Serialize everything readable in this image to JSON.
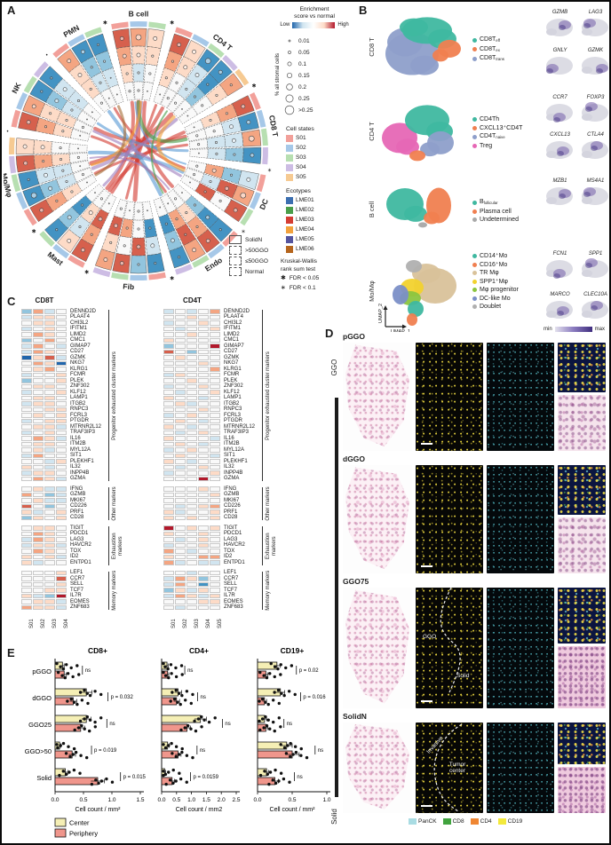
{
  "panelA": {
    "label": "A",
    "sector_order": [
      "B cell",
      "CD4 T",
      "CD8 T",
      "DC",
      "Endo",
      "Fib",
      "Mast",
      "Mo/Mφ",
      "NK",
      "PMN"
    ],
    "ring_names": [
      "SolidN",
      ">50GGO",
      "≤50GGO",
      "Normal"
    ],
    "state_colors": {
      "S01": "#f2a09a",
      "S02": "#a6c8e8",
      "S03": "#b7dfb1",
      "S04": "#cdbde4",
      "S05": "#f6ca92"
    },
    "sectors": [
      {
        "name": "B cell",
        "states": [
          "S01",
          "S02",
          "S03"
        ],
        "values": [
          "765",
          "655",
          "534",
          "444"
        ],
        "dots": [
          "232",
          "221",
          "111",
          "110"
        ]
      },
      {
        "name": "CD4 T",
        "states": [
          "S01",
          "S02",
          "S03",
          "S04",
          "S05"
        ],
        "values": [
          "75116",
          "65315",
          "54324",
          "44444"
        ],
        "dots": [
          "22321",
          "12211",
          "11111",
          "01100"
        ]
      },
      {
        "name": "CD8 T",
        "states": [
          "S01",
          "S02",
          "S03",
          "S04"
        ],
        "values": [
          "7161",
          "6332",
          "5433",
          "4444"
        ],
        "dots": [
          "2232",
          "1221",
          "1111",
          "0110"
        ]
      },
      {
        "name": "DC",
        "states": [
          "S01",
          "S02",
          "S03"
        ],
        "values": [
          "367",
          "274",
          "637",
          "444"
        ],
        "dots": [
          "232",
          "121",
          "211",
          "110"
        ]
      },
      {
        "name": "Endo",
        "states": [
          "S01",
          "S02",
          "S03",
          "S04"
        ],
        "values": [
          "1761",
          "1672",
          "2561",
          "4444"
        ],
        "dots": [
          "1221",
          "2112",
          "1111",
          "0100"
        ]
      },
      {
        "name": "Fib",
        "states": [
          "S01",
          "S02",
          "S03",
          "S04"
        ],
        "values": [
          "1276",
          "3745",
          "1467",
          "4444"
        ],
        "dots": [
          "1122",
          "2211",
          "1112",
          "0101"
        ]
      },
      {
        "name": "Mast",
        "states": [
          "S01",
          "S02",
          "S03"
        ],
        "values": [
          "751",
          "632",
          "751",
          "444"
        ],
        "dots": [
          "221",
          "112",
          "221",
          "010"
        ]
      },
      {
        "name": "Mo/Mφ",
        "states": [
          "S01",
          "S02",
          "S03",
          "S04",
          "S05"
        ],
        "values": [
          "71175",
          "62365",
          "53354",
          "44444"
        ],
        "dots": [
          "23122",
          "12212",
          "11111",
          "01010"
        ]
      },
      {
        "name": "NK",
        "states": [
          "S01",
          "S02",
          "S03",
          "S04"
        ],
        "values": [
          "7611",
          "6523",
          "5533",
          "4444"
        ],
        "dots": [
          "2211",
          "1122",
          "1111",
          "0100"
        ]
      },
      {
        "name": "PMN",
        "states": [
          "S01",
          "S02",
          "S03"
        ],
        "values": [
          "611",
          "522",
          "533",
          "444"
        ],
        "dots": [
          "221",
          "211",
          "110",
          "100"
        ]
      }
    ],
    "chords": [
      [
        "B cell",
        0.5,
        "Fib",
        0.5,
        "#d43d33",
        5
      ],
      [
        "B cell",
        0.2,
        "Mast",
        0.6,
        "#d43d33",
        4
      ],
      [
        "CD4 T",
        0.3,
        "Mast",
        0.3,
        "#d43d33",
        4
      ],
      [
        "CD4 T",
        0.6,
        "Mo/Mφ",
        0.5,
        "#d43d33",
        5
      ],
      [
        "CD8 T",
        0.3,
        "NK",
        0.5,
        "#d43d33",
        4
      ],
      [
        "CD8 T",
        0.6,
        "Mo/Mφ",
        0.2,
        "#d43d33",
        3
      ],
      [
        "NK",
        0.2,
        "Endo",
        0.5,
        "#d43d33",
        3
      ],
      [
        "PMN",
        0.5,
        "DC",
        0.4,
        "#d43d33",
        3
      ],
      [
        "B cell",
        0.8,
        "Endo",
        0.2,
        "#d43d33",
        4
      ],
      [
        "CD4 T",
        0.1,
        "Fib",
        0.8,
        "#d43d33",
        3
      ],
      [
        "Mast",
        0.45,
        "CD8 T",
        0.15,
        "#d43d33",
        4
      ],
      [
        "PMN",
        0.2,
        "Endo",
        0.7,
        "#5b9bd5",
        4
      ],
      [
        "NK",
        0.7,
        "CD8 T",
        0.8,
        "#5b9bd5",
        3
      ],
      [
        "Mo/Mφ",
        0.8,
        "DC",
        0.6,
        "#5b9bd5",
        4
      ],
      [
        "B cell",
        0.35,
        "DC",
        0.2,
        "#5b9bd5",
        2
      ],
      [
        "Mo/Mφ",
        0.35,
        "CD4 T",
        0.8,
        "#9f7fbf",
        4
      ],
      [
        "NK",
        0.4,
        "DC",
        0.8,
        "#9f7fbf",
        3
      ],
      [
        "Mast",
        0.8,
        "B cell",
        0.65,
        "#9f7fbf",
        3
      ],
      [
        "Mo/Mφ",
        0.65,
        "Endo",
        0.35,
        "#9f7fbf",
        2
      ],
      [
        "B cell",
        0.5,
        "CD8 T",
        0.4,
        "#4a9e4a",
        4
      ],
      [
        "CD4 T",
        0.45,
        "Endo",
        0.6,
        "#4a9e4a",
        2
      ],
      [
        "CD4 T",
        0.7,
        "DC",
        0.5,
        "#f2a13c",
        4
      ],
      [
        "B cell",
        0.6,
        "Mo/Mφ",
        0.45,
        "#f2a13c",
        3
      ],
      [
        "PMN",
        0.7,
        "Mo/Mφ",
        0.15,
        "#a8703a",
        3
      ]
    ],
    "marks": [
      {
        "sector": "PMN",
        "symbol": "✱"
      },
      {
        "sector": "B cell",
        "symbol": "✱"
      },
      {
        "sector": "CD4 T",
        "symbol": "✱"
      },
      {
        "sector": "CD8 T",
        "symbol": "∗"
      },
      {
        "sector": "DC",
        "symbol": "∗"
      },
      {
        "sector": "Endo",
        "symbol": "✱"
      },
      {
        "sector": "Fib",
        "symbol": "✱"
      },
      {
        "sector": "Mast",
        "symbol": "✱"
      },
      {
        "sector": "Mo/Mφ",
        "symbol": "•"
      },
      {
        "sector": "NK",
        "symbol": "•"
      }
    ],
    "legend": {
      "enrichment_title_1": "Enrichment",
      "enrichment_title_2": "score vs normal",
      "low": "Low",
      "high": "High",
      "size_axis_label": "% all stromal cells",
      "sizes": [
        "0.01",
        "0.05",
        "0.1",
        "0.15",
        "0.2",
        "0.25",
        ">0.25"
      ],
      "cell_states_title": "Cell states",
      "cell_states": [
        {
          "label": "S01",
          "color": "#f2a09a"
        },
        {
          "label": "S02",
          "color": "#a6c8e8"
        },
        {
          "label": "S03",
          "color": "#b7dfb1"
        },
        {
          "label": "S04",
          "color": "#cdbde4"
        },
        {
          "label": "S05",
          "color": "#f6ca92"
        }
      ],
      "ecotypes_title": "Ecotypes",
      "ecotypes": [
        {
          "label": "LME01",
          "color": "#3c6fb0"
        },
        {
          "label": "LME02",
          "color": "#4a9e4a"
        },
        {
          "label": "LME03",
          "color": "#d43d33"
        },
        {
          "label": "LME04",
          "color": "#f2a13c"
        },
        {
          "label": "LME05",
          "color": "#54549e"
        },
        {
          "label": "LME06",
          "color": "#b5651d"
        }
      ],
      "test_line1": "Kruskal-Wallis",
      "test_line2": "rank sum test",
      "fdr": [
        {
          "symbol": "✱",
          "label": "FDR < 0.05"
        },
        {
          "symbol": "∗",
          "label": "FDR < 0.1"
        }
      ]
    }
  },
  "panelB": {
    "label": "B",
    "rows": [
      {
        "name": "CD8 T",
        "clusters": [
          {
            "text": "CD8T",
            "sub": "eff",
            "color": "#3fb8a0"
          },
          {
            "text": "CD8T",
            "sub": "ex",
            "color": "#f07f50"
          },
          {
            "text": "CD8T",
            "sub": "trans",
            "color": "#8e9fca"
          }
        ],
        "genes": [
          "GZMB",
          "LAG3",
          "GNLY",
          "GZMK"
        ]
      },
      {
        "name": "CD4 T",
        "clusters": [
          {
            "text": "CD4Th",
            "sub": "",
            "color": "#3fb8a0"
          },
          {
            "text": "CXCL13⁺CD4T",
            "sub": "",
            "color": "#f07f50"
          },
          {
            "text": "CD4T",
            "sub": "naive",
            "color": "#8e9fca"
          },
          {
            "text": "Treg",
            "sub": "",
            "color": "#e667b5"
          }
        ],
        "genes": [
          "CCR7",
          "FOXP3",
          "CXCL13",
          "CTLA4"
        ]
      },
      {
        "name": "B cell",
        "clusters": [
          {
            "text": "B",
            "sub": "follicular",
            "color": "#3fb8a0"
          },
          {
            "text": "Plasma cell",
            "sub": "",
            "color": "#f07f50"
          },
          {
            "text": "Undetermined",
            "sub": "",
            "color": "#a8a8a8"
          }
        ],
        "genes": [
          "MZB1",
          "MS4A1"
        ]
      },
      {
        "name": "Mo/Mφ",
        "clusters": [
          {
            "text": "CD14⁺Mo",
            "sub": "",
            "color": "#3fb8a0"
          },
          {
            "text": "CD16⁺Mo",
            "sub": "",
            "color": "#f07f50"
          },
          {
            "text": "TR Mφ",
            "sub": "",
            "color": "#d9c29a"
          },
          {
            "text": "SPP1⁺Mφ",
            "sub": "",
            "color": "#f2d22e"
          },
          {
            "text": "Mφ progenitor",
            "sub": "",
            "color": "#8bc53f"
          },
          {
            "text": "DC-like Mo",
            "sub": "",
            "color": "#7b8fc7"
          },
          {
            "text": "Doublet",
            "sub": "",
            "color": "#b0b0b0"
          }
        ],
        "genes": [
          "FCN1",
          "SPP1",
          "MARCO",
          "CLEC10A"
        ]
      }
    ],
    "axis": {
      "x": "UMAP_1",
      "y": "UMAP_2"
    },
    "colorbar": {
      "min": "min",
      "max": "max"
    }
  },
  "panelC": {
    "label": "C",
    "genes": [
      "DENND2D",
      "PLAAT4",
      "CHI3L2",
      "IFITM1",
      "LIMD2",
      "CMC1",
      "GIMAP7",
      "CD27",
      "GZMK",
      "NKG7",
      "KLRG1",
      "FCMR",
      "PLEK",
      "ZNF302",
      "KLF12",
      "LAMP1",
      "ITGB2",
      "RNPC3",
      "FCRL3",
      "PTGDR",
      "MTRNR2L12",
      "TRAF3IP3",
      "IL16",
      "ITM2B",
      "MYL12A",
      "SIT1",
      "PLEKHF1",
      "IL32",
      "INPP4B",
      "GZMA",
      "IFNG",
      "GZMB",
      "MKI67",
      "CD226",
      "PRF1",
      "CD28",
      "TIGIT",
      "PDCD1",
      "LAG3",
      "HAVCR2",
      "TOX",
      "ID2",
      "ENTPD1",
      "LEF1",
      "CCR7",
      "SELL",
      "TCF7",
      "IL7R",
      "EOMES",
      "ZNF683"
    ],
    "groups": [
      {
        "label": "Progenitor exhausted cluster markers",
        "count": 30
      },
      {
        "label": "Other markers",
        "count": 6
      },
      {
        "label": "Exhaustion markers",
        "count": 7
      },
      {
        "label": "Memory markers",
        "count": 7
      }
    ],
    "heatmaps": [
      {
        "title": "CD8T",
        "columns": [
          "S01",
          "S02",
          "S03",
          "S04"
        ],
        "values": [
          "2634",
          "3554",
          "4554",
          "3454",
          "4654",
          "2464",
          "3643",
          "3654",
          "0573",
          "4650",
          "4564",
          "3445",
          "2445",
          "4554",
          "3445",
          "4554",
          "3554",
          "4455",
          "4545",
          "3455",
          "4553",
          "3454",
          "4653",
          "4554",
          "4534",
          "3644",
          "4435",
          "5434",
          "3554",
          "4653",
          "4533",
          "6423",
          "4533",
          "7424",
          "5345",
          "2545",
          "4554",
          "4654",
          "3654",
          "3553",
          "4654",
          "5453",
          "5344",
          "4445",
          "4447",
          "4445",
          "4455",
          "5328",
          "4553",
          "6553"
        ]
      },
      {
        "title": "CD4T",
        "columns": [
          "S01",
          "S02",
          "S03",
          "S04",
          "S05"
        ],
        "values": [
          "34346",
          "44544",
          "34454",
          "43445",
          "44544",
          "54444",
          "24448",
          "74244",
          "45444",
          "44454",
          "44446",
          "35444",
          "44544",
          "34454",
          "43445",
          "54434",
          "45344",
          "44454",
          "34544",
          "45434",
          "54344",
          "43454",
          "54443",
          "45434",
          "34544",
          "45443",
          "54344",
          "43454",
          "34445",
          "44484",
          "44454",
          "44445",
          "44444",
          "43456",
          "53445",
          "54545",
          "84545",
          "54454",
          "43454",
          "34454",
          "64344",
          "54466",
          "63433",
          "44344",
          "36524",
          "36414",
          "25354",
          "36535",
          "44455",
          "43444"
        ]
      }
    ]
  },
  "panelD": {
    "label": "D",
    "side_top": "GGO",
    "side_bottom": "Solid",
    "rows": [
      {
        "title": "pGGO",
        "annotations": []
      },
      {
        "title": "dGGO",
        "annotations": []
      },
      {
        "title": "GGO75",
        "annotations": [
          "GGO",
          "Solid"
        ]
      },
      {
        "title": "SolidN",
        "annotations": [
          "Invasive",
          "Tumor center"
        ]
      }
    ],
    "legend": [
      {
        "label": "PanCK",
        "color": "#a9dce3"
      },
      {
        "label": "CD8",
        "color": "#41a33e"
      },
      {
        "label": "CD4",
        "color": "#ef8632"
      },
      {
        "label": "CD19",
        "color": "#f3e93c"
      }
    ]
  },
  "panelE": {
    "label": "E",
    "colors": {
      "Center": "#f5efb5",
      "Periphery": "#f0968c"
    }
  },
  "chart_data": {
    "type": "bar",
    "orientation": "horizontal",
    "categories": [
      "pGGO",
      "dGGO",
      "GGO25",
      "GGO>50",
      "Solid"
    ],
    "legend": [
      "Center",
      "Periphery"
    ],
    "charts": [
      {
        "title": "CD8+",
        "xlabel": "Cell count / mm²",
        "xlim": [
          0,
          1.5
        ],
        "xticks": [
          "0.0",
          "0.5",
          "1.0",
          "1.5"
        ],
        "series": [
          {
            "name": "Center",
            "values": [
              0.13,
              0.55,
              0.55,
              0.08,
              0.18
            ],
            "errors": [
              0.03,
              0.1,
              0.08,
              0.02,
              0.05
            ]
          },
          {
            "name": "Periphery",
            "values": [
              0.16,
              0.32,
              0.45,
              0.3,
              0.75
            ],
            "errors": [
              0.04,
              0.06,
              0.07,
              0.06,
              0.12
            ]
          }
        ],
        "p_values": [
          "ns",
          "p = 0.032",
          "ns",
          "p = 0.019",
          "p = 0.015"
        ]
      },
      {
        "title": "CD4+",
        "xlabel": "Cell count / mm2",
        "xlim": [
          0,
          2.5
        ],
        "xticks": [
          "0.0",
          "0.5",
          "1.0",
          "1.5",
          "2.0",
          "2.5"
        ],
        "series": [
          {
            "name": "Center",
            "values": [
              0.18,
              0.55,
              1.3,
              0.2,
              0.1
            ],
            "errors": [
              0.04,
              0.12,
              0.2,
              0.05,
              0.03
            ]
          },
          {
            "name": "Periphery",
            "values": [
              0.2,
              0.5,
              0.85,
              0.55,
              0.35
            ],
            "errors": [
              0.04,
              0.1,
              0.12,
              0.1,
              0.08
            ]
          }
        ],
        "p_values": [
          "ns",
          "ns",
          "ns",
          "ns",
          "p = 0.0159"
        ]
      },
      {
        "title": "CD19+",
        "xlabel": "Cell count / mm²",
        "xlim": [
          0,
          1.0
        ],
        "xticks": [
          "0.0",
          "0.5",
          "1.0"
        ],
        "series": [
          {
            "name": "Center",
            "values": [
              0.28,
              0.33,
              0.1,
              0.42,
              0.13
            ],
            "errors": [
              0.05,
              0.06,
              0.03,
              0.08,
              0.03
            ]
          },
          {
            "name": "Periphery",
            "values": [
              0.12,
              0.1,
              0.12,
              0.5,
              0.25
            ],
            "errors": [
              0.03,
              0.03,
              0.03,
              0.1,
              0.05
            ]
          }
        ],
        "p_values": [
          "p = 0.02",
          "p = 0.016",
          "ns",
          "ns",
          "ns"
        ]
      }
    ]
  }
}
